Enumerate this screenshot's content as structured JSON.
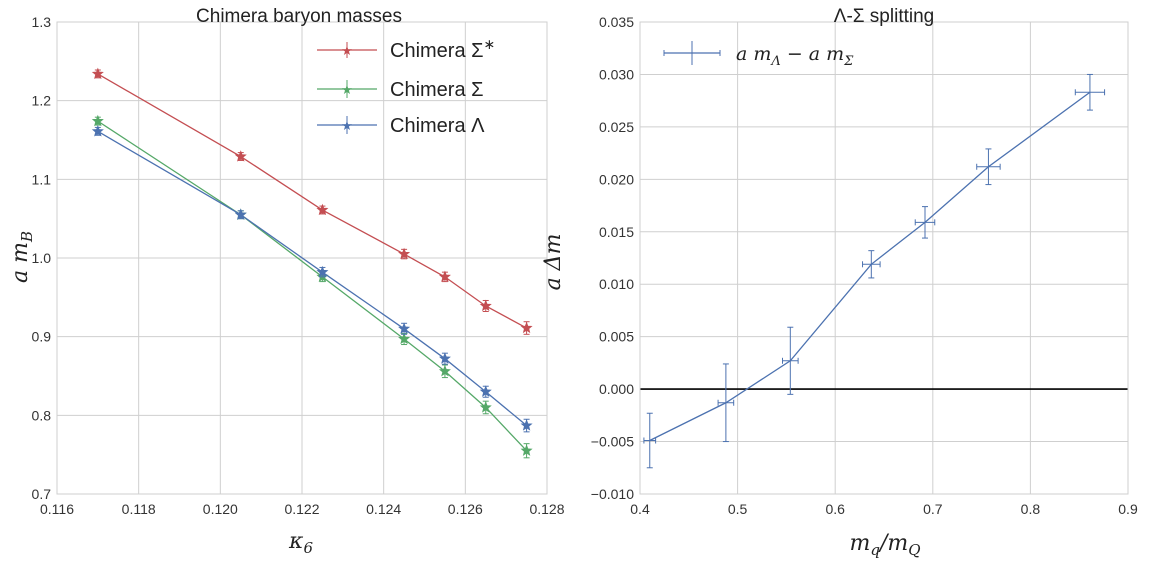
{
  "chart_data": [
    {
      "type": "line",
      "title": "Chimera baryon masses",
      "xlabel": "κ6",
      "ylabel": "a mB",
      "xlim": [
        0.116,
        0.128
      ],
      "ylim": [
        0.7,
        1.3
      ],
      "xticks": [
        "0.116",
        "0.118",
        "0.120",
        "0.122",
        "0.124",
        "0.126",
        "0.128"
      ],
      "yticks": [
        "0.7",
        "0.8",
        "0.9",
        "1.0",
        "1.1",
        "1.2",
        "1.3"
      ],
      "grid": true,
      "legend_position": "top-right",
      "series": [
        {
          "name": "Chimera Σ*",
          "color": "#c44e52",
          "x": [
            0.117,
            0.1205,
            0.1225,
            0.1245,
            0.1255,
            0.1265,
            0.1275
          ],
          "y": [
            1.234,
            1.129,
            1.061,
            1.005,
            0.976,
            0.939,
            0.911
          ],
          "yerr": [
            0.005,
            0.005,
            0.005,
            0.006,
            0.006,
            0.007,
            0.008
          ]
        },
        {
          "name": "Chimera Σ",
          "color": "#55a868",
          "x": [
            0.117,
            0.1205,
            0.1225,
            0.1245,
            0.1255,
            0.1265,
            0.1275
          ],
          "y": [
            1.174,
            1.055,
            0.976,
            0.897,
            0.856,
            0.81,
            0.755
          ],
          "yerr": [
            0.005,
            0.005,
            0.006,
            0.007,
            0.008,
            0.008,
            0.009
          ]
        },
        {
          "name": "Chimera Λ",
          "color": "#4c72b0",
          "x": [
            0.117,
            0.1205,
            0.1225,
            0.1245,
            0.1255,
            0.1265,
            0.1275
          ],
          "y": [
            1.161,
            1.055,
            0.982,
            0.91,
            0.872,
            0.83,
            0.787
          ],
          "yerr": [
            0.005,
            0.005,
            0.006,
            0.007,
            0.007,
            0.007,
            0.008
          ]
        }
      ]
    },
    {
      "type": "line",
      "title": "Λ-Σ splitting",
      "xlabel": "mq/mQ",
      "ylabel": "a Δm",
      "xlim": [
        0.4,
        0.9
      ],
      "ylim": [
        -0.01,
        0.035
      ],
      "xticks": [
        "0.4",
        "0.5",
        "0.6",
        "0.7",
        "0.8",
        "0.9"
      ],
      "yticks": [
        "−0.010",
        "−0.005",
        "0.000",
        "0.005",
        "0.010",
        "0.015",
        "0.020",
        "0.025",
        "0.030",
        "0.035"
      ],
      "grid": true,
      "zero_line": true,
      "legend_position": "top-left",
      "series": [
        {
          "name": "a mΛ − a mΣ",
          "color": "#4c72b0",
          "x": [
            0.41,
            0.488,
            0.554,
            0.637,
            0.692,
            0.757,
            0.861
          ],
          "y": [
            -0.0049,
            -0.0013,
            0.0027,
            0.0119,
            0.0159,
            0.0212,
            0.0283
          ],
          "yerr": [
            0.0026,
            0.0037,
            0.0032,
            0.0013,
            0.0015,
            0.0017,
            0.0017
          ],
          "xerr": [
            0.006,
            0.008,
            0.008,
            0.009,
            0.01,
            0.012,
            0.015
          ]
        }
      ]
    }
  ]
}
